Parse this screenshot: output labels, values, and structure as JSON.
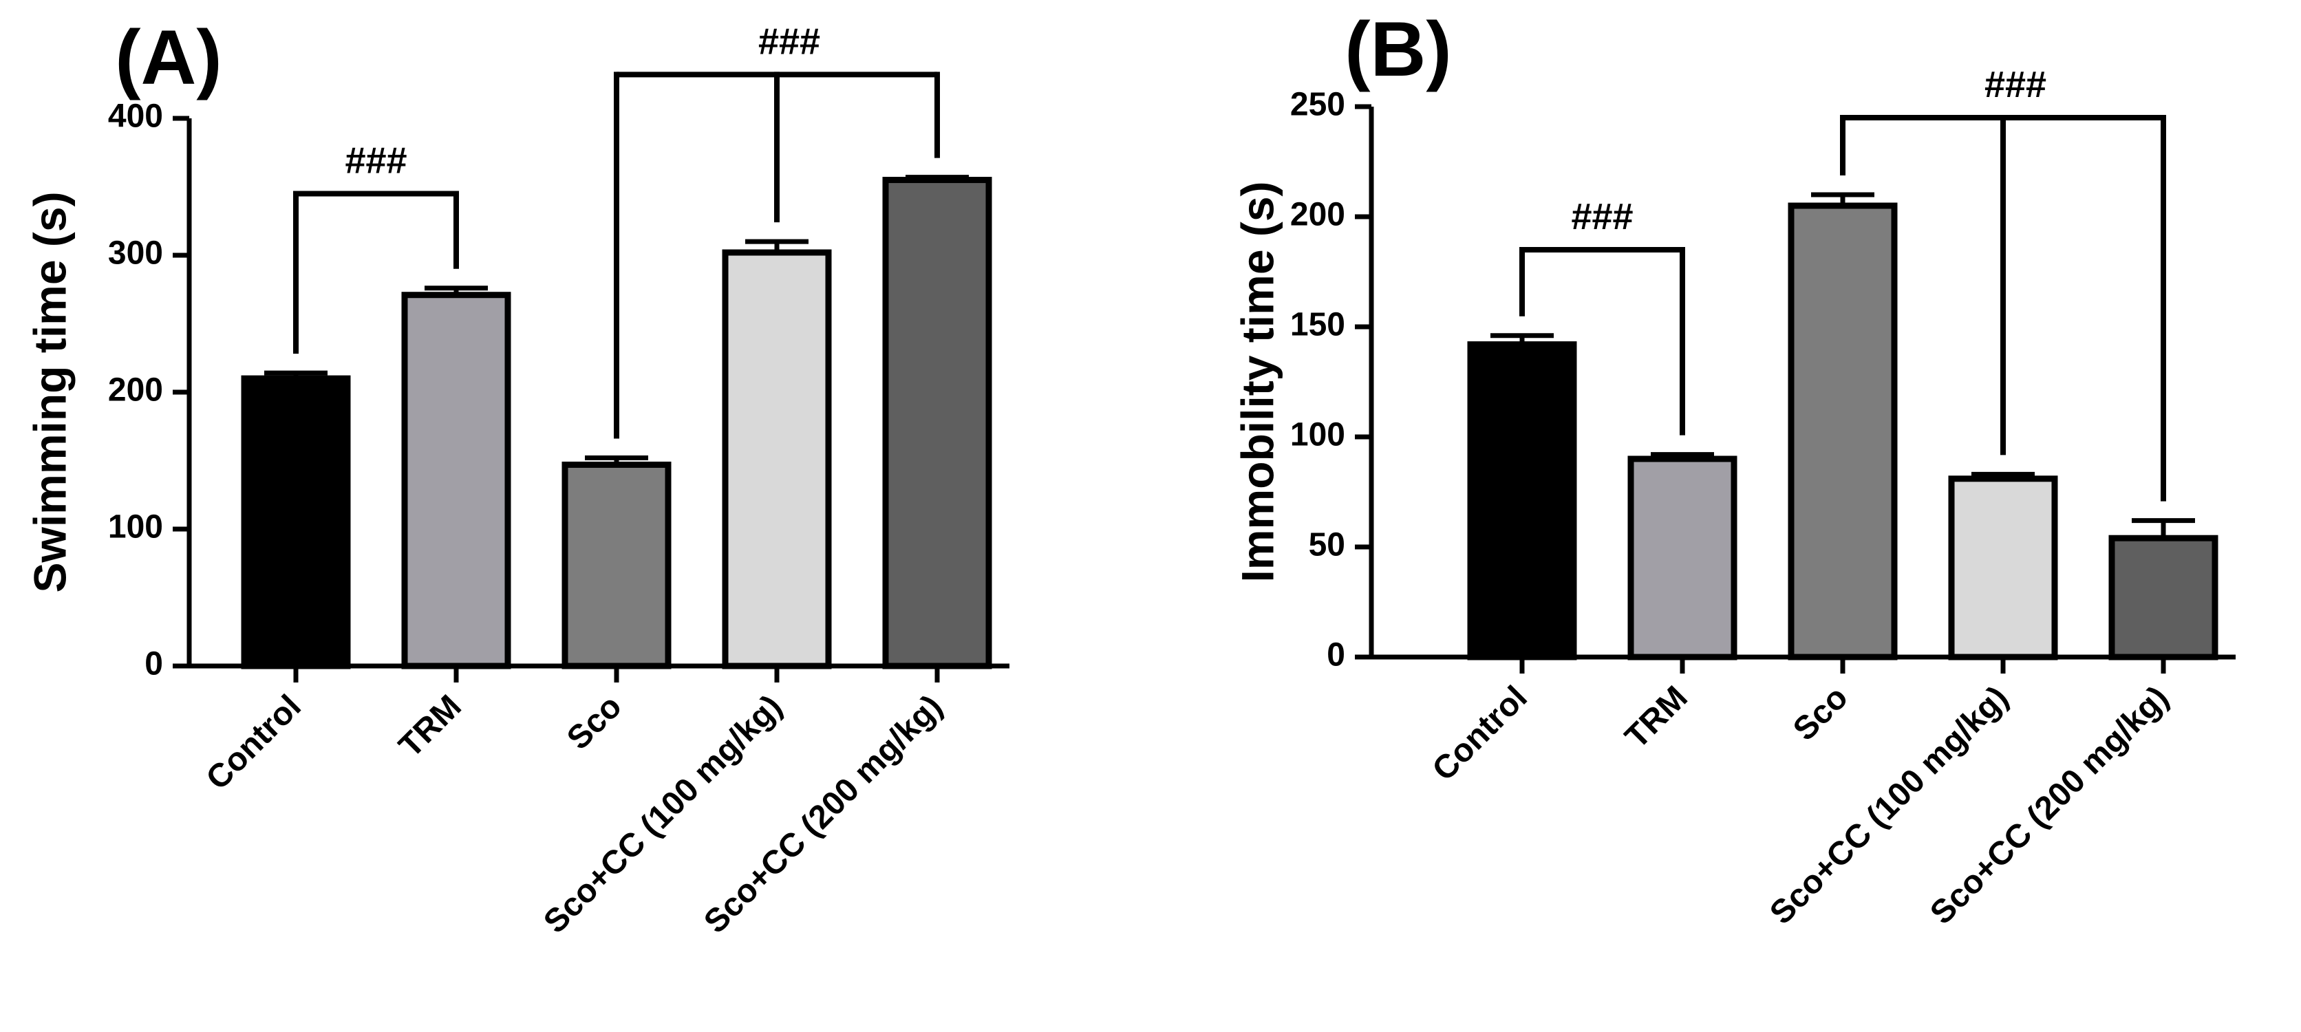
{
  "chart_data": [
    {
      "type": "bar",
      "panel": "(A)",
      "ylabel": "Swimming time (s)",
      "xlabel": "",
      "ylim": [
        0,
        400
      ],
      "yticks": [
        0,
        100,
        200,
        300,
        400
      ],
      "categories": [
        "Control",
        "TRM",
        "Sco",
        "Sco+CC (100 mg/kg)",
        "Sco+CC (200 mg/kg)"
      ],
      "values": [
        210,
        271,
        147,
        302,
        355
      ],
      "errors": [
        4,
        5,
        5,
        8,
        2
      ],
      "colors": [
        "#000000",
        "#a19fa6",
        "#7d7d7d",
        "#d9d9d9",
        "#5f5f5f"
      ],
      "significance": [
        {
          "label": "###",
          "from": 0,
          "to": [
            1
          ],
          "level": 345
        },
        {
          "label": "###",
          "from": 2,
          "to": [
            3,
            4
          ],
          "level": 432
        }
      ]
    },
    {
      "type": "bar",
      "panel": "(B)",
      "ylabel": "Immobility time (s)",
      "xlabel": "",
      "ylim": [
        0,
        250
      ],
      "yticks": [
        0,
        50,
        100,
        150,
        200,
        250
      ],
      "categories": [
        "Control",
        "TRM",
        "Sco",
        "Sco+CC (100 mg/kg)",
        "Sco+CC (200 mg/kg)"
      ],
      "values": [
        142,
        90,
        205,
        81,
        54
      ],
      "errors": [
        4,
        2,
        5,
        2,
        8
      ],
      "colors": [
        "#000000",
        "#a19fa6",
        "#7d7d7d",
        "#d9d9d9",
        "#5f5f5f"
      ],
      "significance": [
        {
          "label": "###",
          "from": 0,
          "to": [
            1
          ],
          "level": 185
        },
        {
          "label": "###",
          "from": 2,
          "to": [
            3,
            4
          ],
          "level": 245
        }
      ]
    }
  ]
}
